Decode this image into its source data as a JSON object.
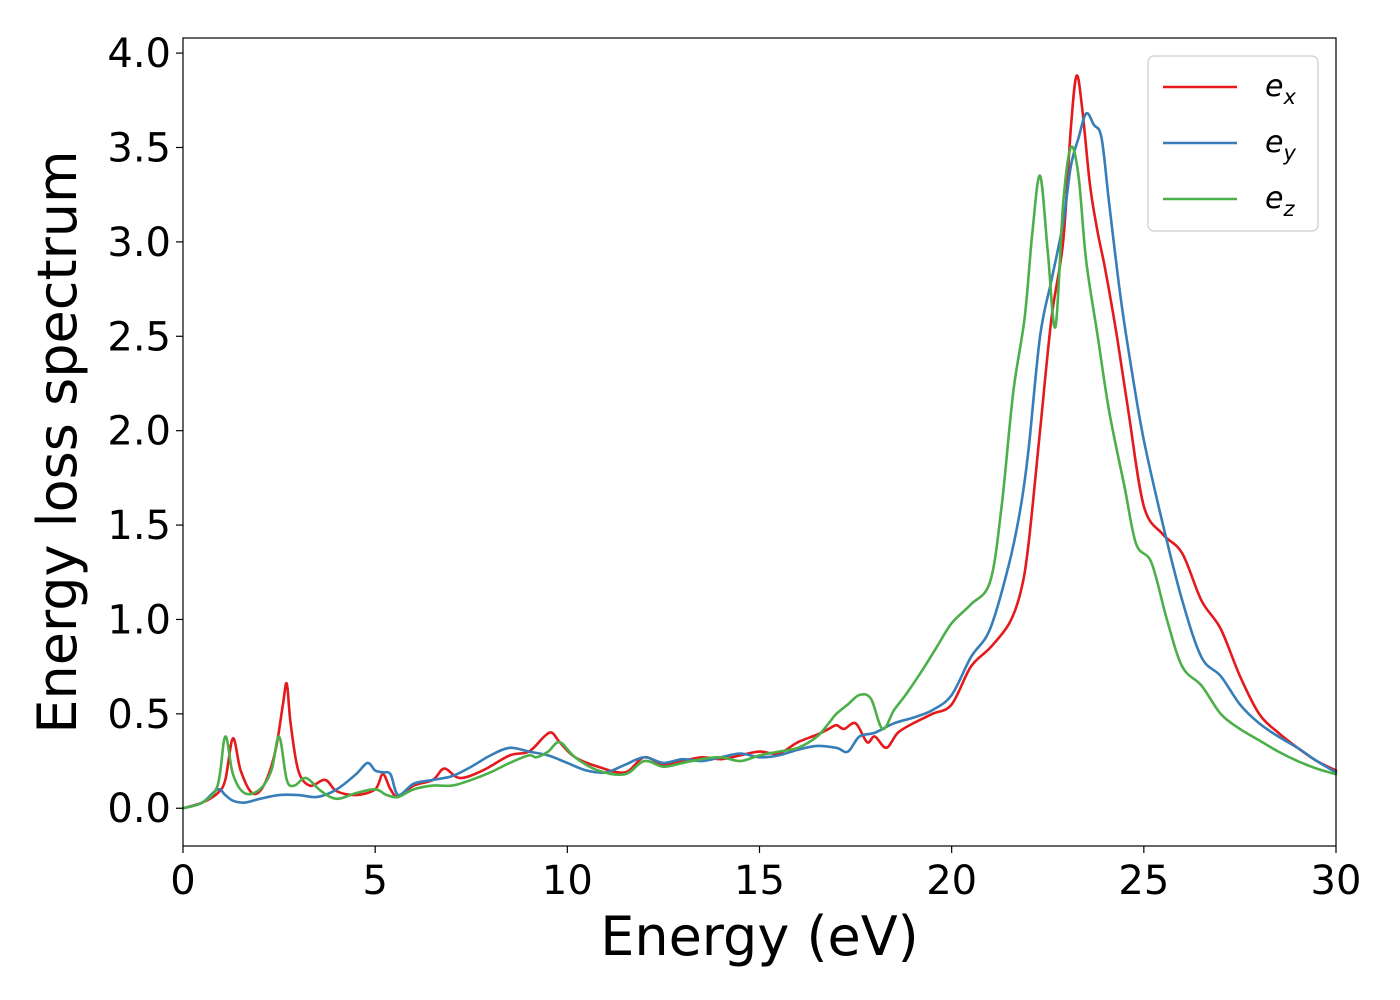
{
  "chart_data": {
    "type": "line",
    "xlabel": "Energy (eV)",
    "ylabel": "Energy loss spectrum",
    "xlim": [
      0,
      30
    ],
    "ylim": [
      -0.2,
      4.08
    ],
    "xticks": [
      "0",
      "5",
      "10",
      "15",
      "20",
      "25",
      "30"
    ],
    "yticks": [
      "0.0",
      "0.5",
      "1.0",
      "1.5",
      "2.0",
      "2.5",
      "3.0",
      "3.5",
      "4.0"
    ],
    "grid": false,
    "legend_position": "top-right",
    "series": [
      {
        "name": "e_x",
        "label_base": "e",
        "label_sub": "x",
        "color": "#e41a1c",
        "x": [
          0,
          0.5,
          0.9,
          1.1,
          1.3,
          1.5,
          1.8,
          2.1,
          2.4,
          2.6,
          2.7,
          2.8,
          3.0,
          3.3,
          3.7,
          4.0,
          4.5,
          5.0,
          5.2,
          5.4,
          5.6,
          6.0,
          6.5,
          6.8,
          7.2,
          7.8,
          8.5,
          9.0,
          9.4,
          9.6,
          9.8,
          10.2,
          10.8,
          11.5,
          12.0,
          12.5,
          13.0,
          13.5,
          14.0,
          14.5,
          15.0,
          15.5,
          16.0,
          16.5,
          16.8,
          17.0,
          17.2,
          17.5,
          17.8,
          18.0,
          18.3,
          18.6,
          19.0,
          19.5,
          20.0,
          20.5,
          21.0,
          21.5,
          21.8,
          22.0,
          22.3,
          22.6,
          22.9,
          23.1,
          23.25,
          23.4,
          23.6,
          23.8,
          24.0,
          24.3,
          24.6,
          25.0,
          25.5,
          26.0,
          26.5,
          27.0,
          27.5,
          28.0,
          28.5,
          29.0,
          29.5,
          30.0
        ],
        "y": [
          0.0,
          0.03,
          0.08,
          0.15,
          0.37,
          0.2,
          0.08,
          0.12,
          0.3,
          0.55,
          0.66,
          0.45,
          0.2,
          0.12,
          0.15,
          0.09,
          0.07,
          0.1,
          0.18,
          0.1,
          0.06,
          0.12,
          0.15,
          0.21,
          0.16,
          0.2,
          0.28,
          0.3,
          0.38,
          0.4,
          0.35,
          0.27,
          0.22,
          0.19,
          0.27,
          0.23,
          0.25,
          0.27,
          0.26,
          0.28,
          0.3,
          0.29,
          0.35,
          0.39,
          0.42,
          0.44,
          0.42,
          0.45,
          0.35,
          0.38,
          0.32,
          0.4,
          0.45,
          0.5,
          0.55,
          0.75,
          0.85,
          0.98,
          1.15,
          1.4,
          2.0,
          2.6,
          3.0,
          3.6,
          3.88,
          3.7,
          3.3,
          3.05,
          2.85,
          2.5,
          2.1,
          1.6,
          1.45,
          1.35,
          1.1,
          0.95,
          0.7,
          0.5,
          0.4,
          0.32,
          0.25,
          0.2
        ]
      },
      {
        "name": "e_y",
        "label_base": "e",
        "label_sub": "y",
        "color": "#377eb8",
        "x": [
          0,
          0.5,
          0.9,
          1.1,
          1.3,
          1.6,
          2.0,
          2.5,
          3.0,
          3.5,
          4.0,
          4.5,
          4.8,
          5.0,
          5.2,
          5.4,
          5.6,
          6.0,
          6.5,
          7.0,
          7.5,
          8.0,
          8.5,
          9.0,
          9.5,
          10.0,
          10.5,
          11.0,
          11.5,
          12.0,
          12.5,
          13.0,
          13.5,
          14.0,
          14.5,
          15.0,
          15.5,
          16.0,
          16.5,
          17.0,
          17.3,
          17.6,
          18.0,
          18.5,
          19.0,
          19.5,
          20.0,
          20.5,
          21.0,
          21.5,
          21.8,
          22.0,
          22.3,
          22.6,
          22.9,
          23.1,
          23.3,
          23.5,
          23.7,
          23.9,
          24.1,
          24.4,
          24.7,
          25.0,
          25.5,
          26.0,
          26.5,
          27.0,
          27.5,
          28.0,
          28.5,
          29.0,
          29.5,
          30.0
        ],
        "y": [
          0.0,
          0.03,
          0.1,
          0.07,
          0.04,
          0.03,
          0.05,
          0.07,
          0.07,
          0.06,
          0.1,
          0.18,
          0.24,
          0.2,
          0.19,
          0.18,
          0.07,
          0.13,
          0.15,
          0.17,
          0.22,
          0.28,
          0.32,
          0.3,
          0.28,
          0.24,
          0.2,
          0.19,
          0.23,
          0.27,
          0.24,
          0.26,
          0.25,
          0.27,
          0.29,
          0.27,
          0.28,
          0.31,
          0.33,
          0.32,
          0.3,
          0.38,
          0.4,
          0.45,
          0.48,
          0.52,
          0.6,
          0.8,
          0.95,
          1.3,
          1.6,
          1.9,
          2.5,
          2.8,
          3.1,
          3.4,
          3.55,
          3.68,
          3.62,
          3.55,
          3.2,
          2.7,
          2.3,
          1.95,
          1.5,
          1.1,
          0.8,
          0.7,
          0.55,
          0.45,
          0.38,
          0.32,
          0.25,
          0.19
        ]
      },
      {
        "name": "e_z",
        "label_base": "e",
        "label_sub": "z",
        "color": "#4daf4a",
        "x": [
          0,
          0.5,
          0.9,
          1.1,
          1.3,
          1.6,
          2.0,
          2.3,
          2.5,
          2.7,
          2.9,
          3.2,
          3.6,
          4.0,
          4.5,
          5.0,
          5.3,
          5.6,
          6.0,
          6.5,
          7.0,
          7.5,
          8.0,
          8.5,
          9.0,
          9.2,
          9.5,
          9.8,
          10.2,
          10.8,
          11.5,
          12.0,
          12.5,
          13.0,
          13.5,
          14.0,
          14.5,
          15.0,
          15.5,
          16.0,
          16.5,
          16.8,
          17.0,
          17.3,
          17.6,
          17.9,
          18.2,
          18.5,
          18.8,
          19.2,
          19.6,
          20.0,
          20.5,
          21.0,
          21.3,
          21.6,
          21.9,
          22.1,
          22.3,
          22.5,
          22.7,
          22.9,
          23.1,
          23.3,
          23.5,
          23.8,
          24.1,
          24.5,
          24.8,
          25.2,
          25.6,
          26.0,
          26.5,
          27.0,
          27.5,
          28.0,
          28.5,
          29.0,
          29.5,
          30.0
        ],
        "y": [
          0.0,
          0.03,
          0.12,
          0.38,
          0.18,
          0.08,
          0.1,
          0.2,
          0.38,
          0.15,
          0.12,
          0.16,
          0.09,
          0.05,
          0.08,
          0.1,
          0.07,
          0.06,
          0.1,
          0.12,
          0.12,
          0.15,
          0.19,
          0.24,
          0.28,
          0.27,
          0.3,
          0.35,
          0.27,
          0.2,
          0.18,
          0.25,
          0.22,
          0.24,
          0.26,
          0.27,
          0.25,
          0.28,
          0.3,
          0.32,
          0.38,
          0.45,
          0.5,
          0.55,
          0.6,
          0.58,
          0.42,
          0.52,
          0.6,
          0.72,
          0.85,
          0.98,
          1.08,
          1.2,
          1.6,
          2.2,
          2.6,
          3.05,
          3.35,
          2.95,
          2.55,
          3.2,
          3.5,
          3.35,
          2.9,
          2.5,
          2.1,
          1.7,
          1.4,
          1.3,
          1.0,
          0.75,
          0.65,
          0.5,
          0.42,
          0.36,
          0.3,
          0.25,
          0.21,
          0.18
        ]
      }
    ]
  }
}
